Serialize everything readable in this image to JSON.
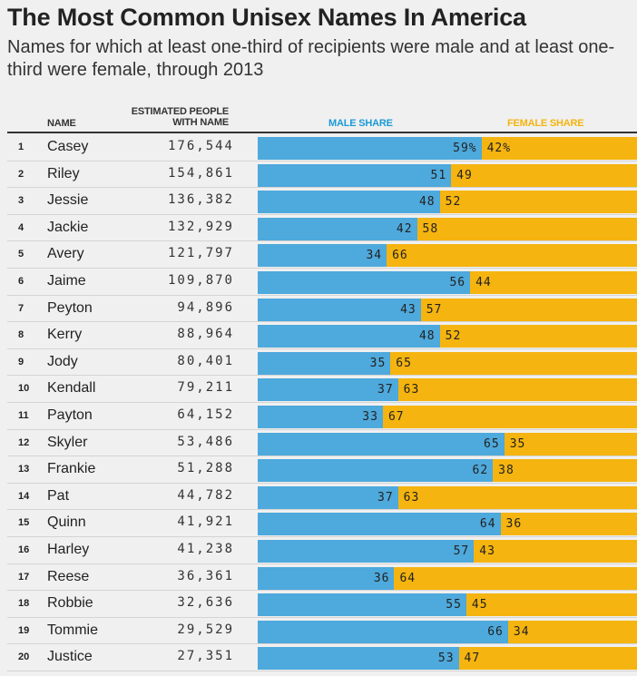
{
  "header": {
    "title": "The Most Common Unisex Names In America",
    "subtitle": "Names for which at least one-third of recipients were male and at least one-third were female, through 2013",
    "col_name": "NAME",
    "col_estimated_line1": "ESTIMATED PEOPLE",
    "col_estimated_line2": "WITH NAME",
    "col_male": "MALE SHARE",
    "col_female": "FEMALE SHARE"
  },
  "colors": {
    "male": "#4ea9dc",
    "female": "#f5b40f",
    "male_header": "#1b9ad6",
    "female_header": "#f5b40f"
  },
  "chart_data": {
    "type": "bar",
    "stacked": true,
    "orientation": "horizontal",
    "title": "The Most Common Unisex Names In America",
    "subtitle": "Names for which at least one-third of recipients were male and at least one-third were female, through 2013",
    "rows": [
      {
        "rank": "1",
        "name": "Casey",
        "count": "176,544",
        "male": 59,
        "female": 42,
        "male_label": "59%",
        "female_label": "42%"
      },
      {
        "rank": "2",
        "name": "Riley",
        "count": "154,861",
        "male": 51,
        "female": 49,
        "male_label": "51",
        "female_label": "49"
      },
      {
        "rank": "3",
        "name": "Jessie",
        "count": "136,382",
        "male": 48,
        "female": 52,
        "male_label": "48",
        "female_label": "52"
      },
      {
        "rank": "4",
        "name": "Jackie",
        "count": "132,929",
        "male": 42,
        "female": 58,
        "male_label": "42",
        "female_label": "58"
      },
      {
        "rank": "5",
        "name": "Avery",
        "count": "121,797",
        "male": 34,
        "female": 66,
        "male_label": "34",
        "female_label": "66"
      },
      {
        "rank": "6",
        "name": "Jaime",
        "count": "109,870",
        "male": 56,
        "female": 44,
        "male_label": "56",
        "female_label": "44"
      },
      {
        "rank": "7",
        "name": "Peyton",
        "count": "94,896",
        "male": 43,
        "female": 57,
        "male_label": "43",
        "female_label": "57"
      },
      {
        "rank": "8",
        "name": "Kerry",
        "count": "88,964",
        "male": 48,
        "female": 52,
        "male_label": "48",
        "female_label": "52"
      },
      {
        "rank": "9",
        "name": "Jody",
        "count": "80,401",
        "male": 35,
        "female": 65,
        "male_label": "35",
        "female_label": "65"
      },
      {
        "rank": "10",
        "name": "Kendall",
        "count": "79,211",
        "male": 37,
        "female": 63,
        "male_label": "37",
        "female_label": "63"
      },
      {
        "rank": "11",
        "name": "Payton",
        "count": "64,152",
        "male": 33,
        "female": 67,
        "male_label": "33",
        "female_label": "67"
      },
      {
        "rank": "12",
        "name": "Skyler",
        "count": "53,486",
        "male": 65,
        "female": 35,
        "male_label": "65",
        "female_label": "35"
      },
      {
        "rank": "13",
        "name": "Frankie",
        "count": "51,288",
        "male": 62,
        "female": 38,
        "male_label": "62",
        "female_label": "38"
      },
      {
        "rank": "14",
        "name": "Pat",
        "count": "44,782",
        "male": 37,
        "female": 63,
        "male_label": "37",
        "female_label": "63"
      },
      {
        "rank": "15",
        "name": "Quinn",
        "count": "41,921",
        "male": 64,
        "female": 36,
        "male_label": "64",
        "female_label": "36"
      },
      {
        "rank": "16",
        "name": "Harley",
        "count": "41,238",
        "male": 57,
        "female": 43,
        "male_label": "57",
        "female_label": "43"
      },
      {
        "rank": "17",
        "name": "Reese",
        "count": "36,361",
        "male": 36,
        "female": 64,
        "male_label": "36",
        "female_label": "64"
      },
      {
        "rank": "18",
        "name": "Robbie",
        "count": "32,636",
        "male": 55,
        "female": 45,
        "male_label": "55",
        "female_label": "45"
      },
      {
        "rank": "19",
        "name": "Tommie",
        "count": "29,529",
        "male": 66,
        "female": 34,
        "male_label": "66",
        "female_label": "34"
      },
      {
        "rank": "20",
        "name": "Justice",
        "count": "27,351",
        "male": 53,
        "female": 47,
        "male_label": "53",
        "female_label": "47"
      }
    ]
  }
}
